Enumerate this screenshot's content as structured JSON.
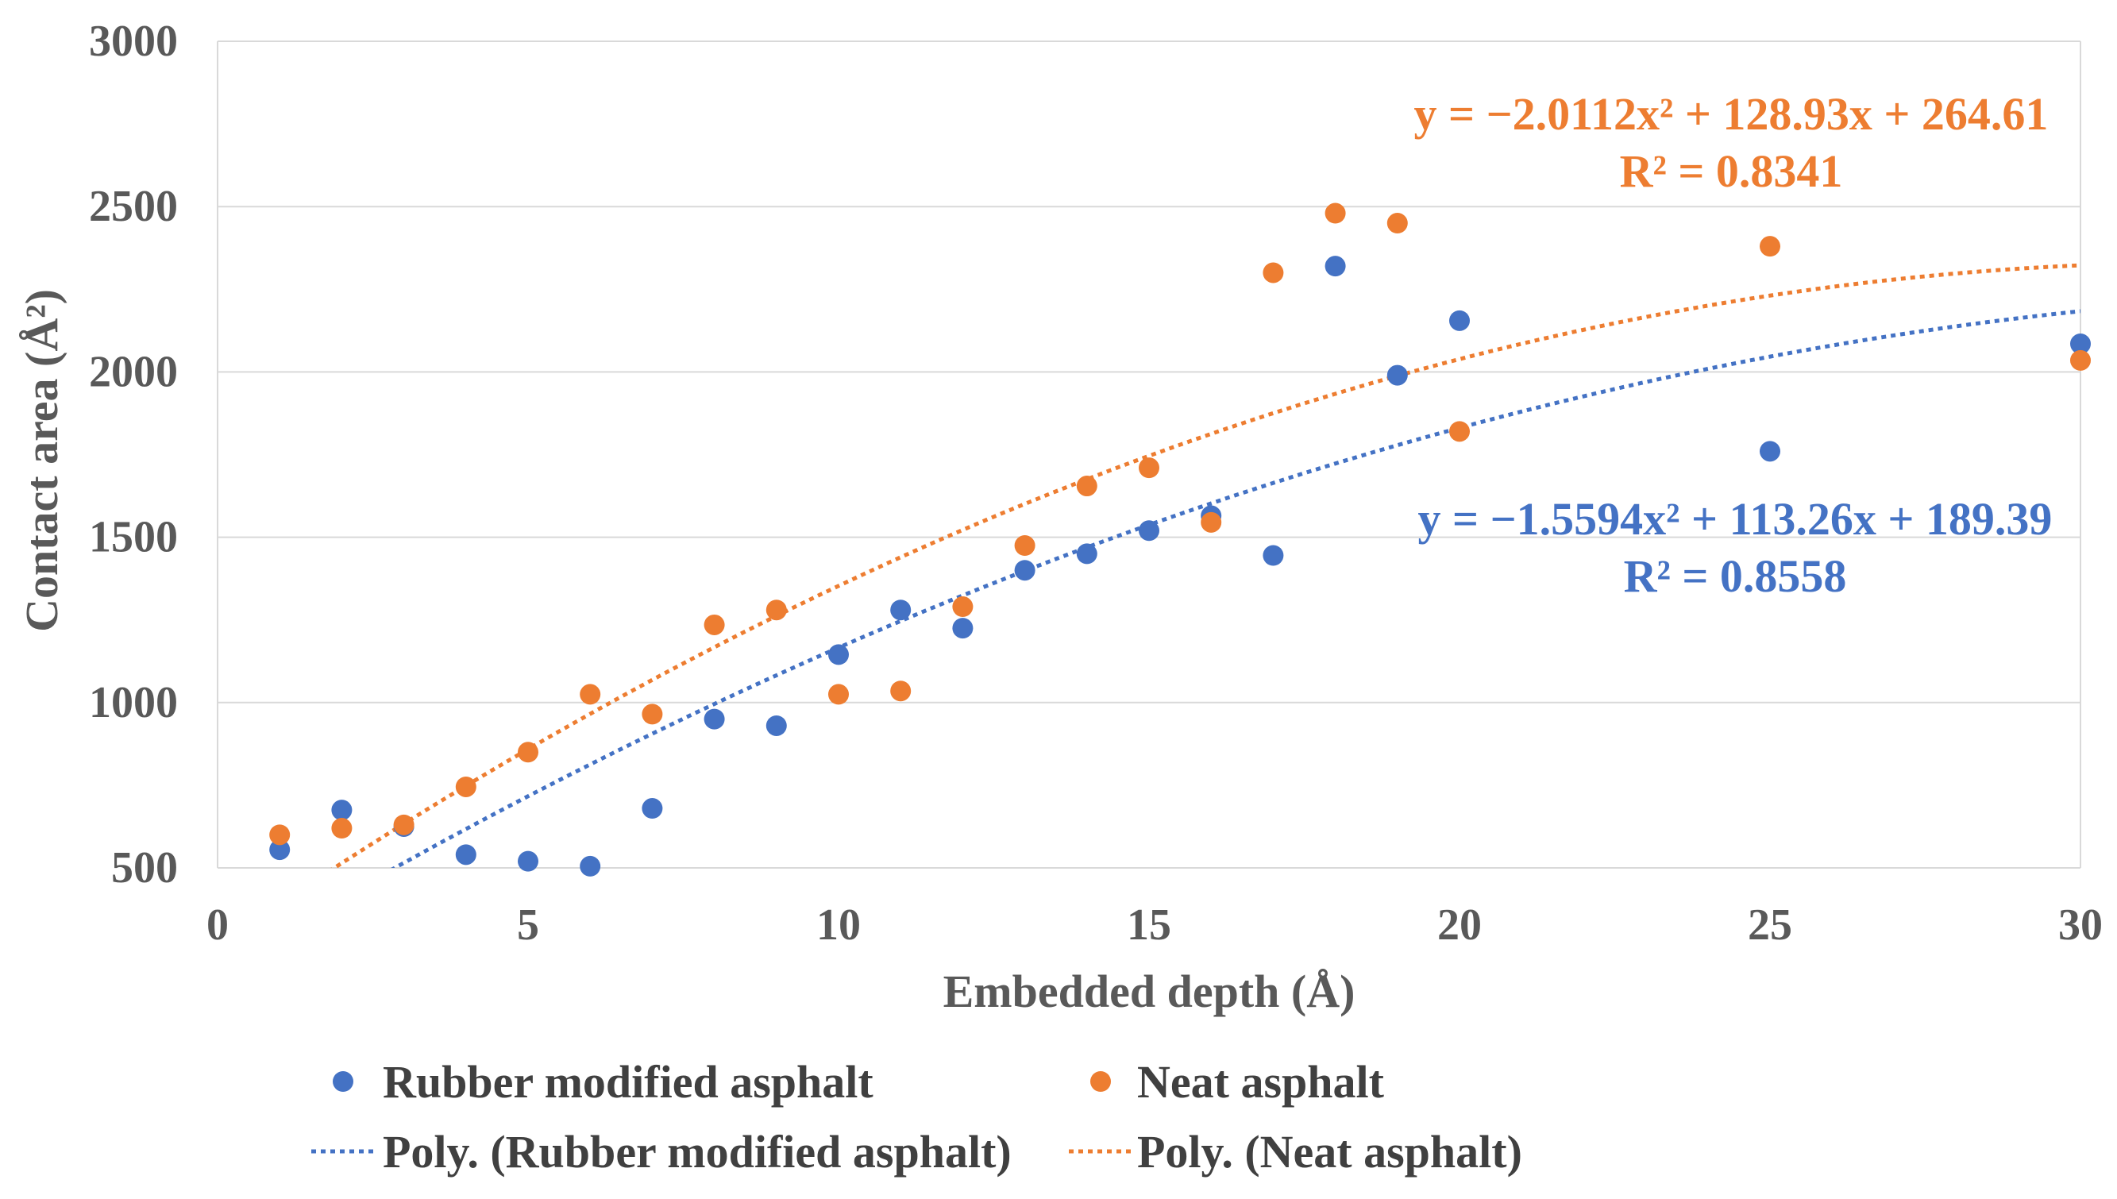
{
  "chart_data": {
    "type": "scatter",
    "title": "",
    "xlabel": "Embedded depth (Å)",
    "ylabel": "Contact area (Å²)",
    "xlim": [
      0,
      30
    ],
    "ylim": [
      500,
      3000
    ],
    "x_ticks": [
      "0",
      "5",
      "10",
      "15",
      "20",
      "25",
      "30"
    ],
    "y_ticks": [
      "500",
      "1000",
      "1500",
      "2000",
      "2500",
      "3000"
    ],
    "grid": "horizontal",
    "legend_position": "bottom",
    "series": [
      {
        "name": "Rubber modified asphalt",
        "color": "#4472C4",
        "x": [
          1,
          2,
          3,
          4,
          5,
          6,
          7,
          8,
          9,
          10,
          11,
          12,
          13,
          14,
          15,
          16,
          17,
          18,
          19,
          20,
          25,
          30
        ],
        "y": [
          555,
          675,
          625,
          540,
          520,
          505,
          680,
          950,
          930,
          1145,
          1280,
          1225,
          1400,
          1450,
          1520,
          1565,
          1445,
          2320,
          1990,
          2155,
          1760,
          2085
        ],
        "trendline": {
          "name": "Poly. (Rubber modified asphalt)",
          "coefficients": [
            -1.5594,
            113.26,
            189.39
          ],
          "equation": "y = −1.5594x² + 113.26x + 189.39",
          "r2": "R² = 0.8558"
        }
      },
      {
        "name": "Neat asphalt",
        "color": "#ED7D31",
        "x": [
          1,
          2,
          3,
          4,
          5,
          6,
          7,
          8,
          9,
          10,
          11,
          12,
          13,
          14,
          15,
          16,
          17,
          18,
          19,
          20,
          25,
          30
        ],
        "y": [
          600,
          620,
          630,
          745,
          850,
          1025,
          965,
          1235,
          1280,
          1025,
          1035,
          1290,
          1475,
          1655,
          1710,
          1545,
          2300,
          2480,
          2450,
          1820,
          2380,
          2035
        ],
        "trendline": {
          "name": "Poly. (Neat asphalt)",
          "coefficients": [
            -2.0112,
            128.93,
            264.61
          ],
          "equation": "y = −2.0112x² + 128.93x + 264.61",
          "r2": "R² = 0.8341"
        }
      }
    ]
  }
}
